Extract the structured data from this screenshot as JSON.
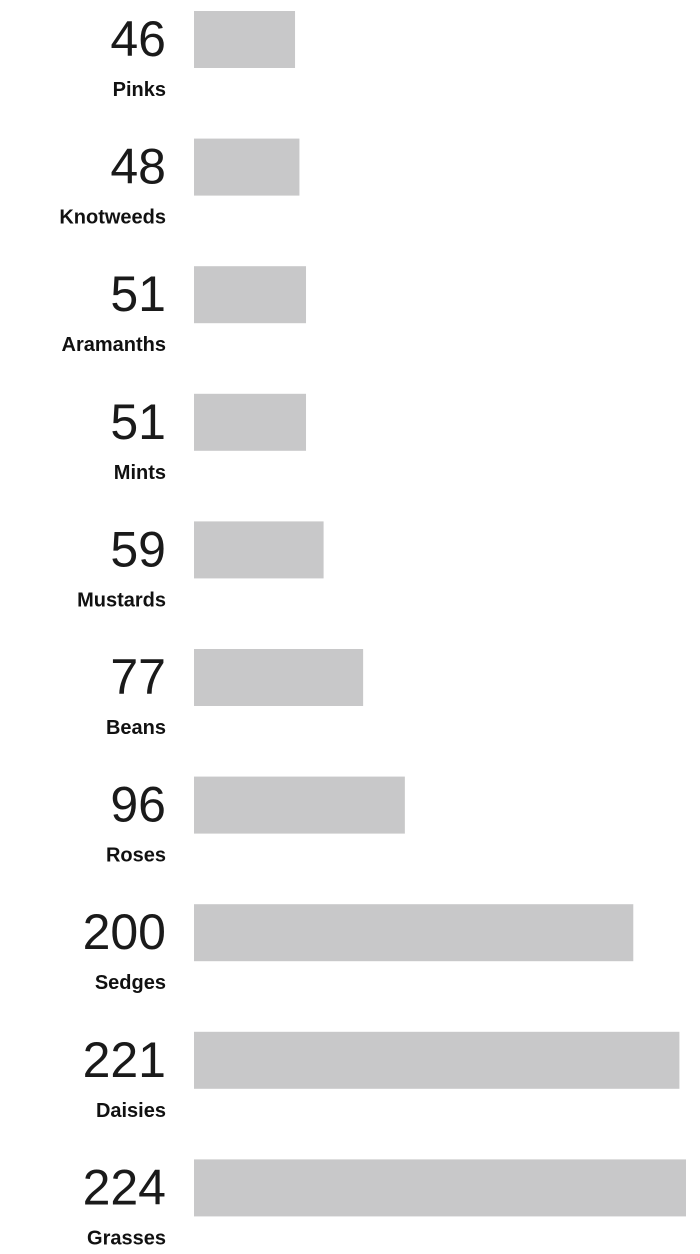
{
  "chart_data": {
    "type": "bar",
    "orientation": "horizontal",
    "categories": [
      "Pinks",
      "Knotweeds",
      "Aramanths",
      "Mints",
      "Mustards",
      "Beans",
      "Roses",
      "Sedges",
      "Daisies",
      "Grasses"
    ],
    "values": [
      46,
      48,
      51,
      51,
      59,
      77,
      96,
      200,
      221,
      224
    ],
    "value_labels": [
      "46",
      "48",
      "51",
      "51",
      "59",
      "77",
      "96",
      "200",
      "221",
      "224"
    ],
    "xlim": [
      0,
      224
    ],
    "grid": false,
    "legend": "none",
    "colors": {
      "bar": "#c8c8c9",
      "value_text": "#1a1a1a",
      "category_text": "#111111"
    }
  }
}
